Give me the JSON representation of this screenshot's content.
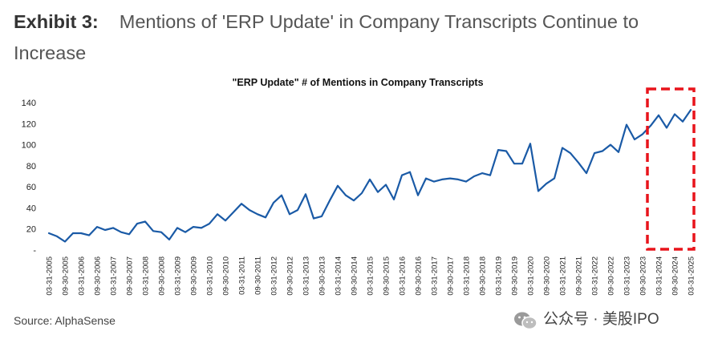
{
  "exhibit": {
    "label": "Exhibit 3:",
    "title": "Mentions of 'ERP Update' in Company Transcripts Continue to Increase"
  },
  "source": "Source: AlphaSense",
  "watermark": {
    "icon": "wechat-icon",
    "text": "公众号 · 美股IPO"
  },
  "colors": {
    "line": "#1a5aa6",
    "highlight": "#e8141b",
    "title_text": "#111111",
    "tick_text": "#222222"
  },
  "chart_data": {
    "type": "line",
    "title": "\"ERP Update\" # of Mentions in Company Transcripts",
    "xlabel": "",
    "ylabel": "",
    "ylim": [
      0,
      140
    ],
    "yticks": [
      "-",
      "20",
      "40",
      "60",
      "80",
      "100",
      "120",
      "140"
    ],
    "grid": false,
    "x_labels": [
      "03-31-2005",
      "09-30-2005",
      "03-31-2006",
      "09-30-2006",
      "03-31-2007",
      "09-30-2007",
      "03-31-2008",
      "09-30-2008",
      "03-31-2009",
      "09-30-2009",
      "03-31-2010",
      "09-30-2010",
      "03-31-2011",
      "09-30-2011",
      "03-31-2012",
      "09-30-2012",
      "03-31-2013",
      "09-30-2013",
      "03-31-2014",
      "09-30-2014",
      "03-31-2015",
      "09-30-2015",
      "03-31-2016",
      "09-30-2016",
      "03-31-2017",
      "09-30-2017",
      "03-31-2018",
      "09-30-2018",
      "03-31-2019",
      "09-30-2019",
      "03-31-2020",
      "09-30-2020",
      "03-31-2021",
      "09-30-2021",
      "03-31-2022",
      "09-30-2022",
      "03-31-2023",
      "09-30-2023",
      "03-31-2024",
      "09-30-2024",
      "03-31-2025"
    ],
    "values": [
      16,
      13,
      8,
      16,
      16,
      14,
      22,
      19,
      21,
      17,
      15,
      25,
      27,
      18,
      17,
      10,
      21,
      17,
      22,
      21,
      25,
      34,
      28,
      36,
      44,
      38,
      34,
      31,
      45,
      52,
      34,
      38,
      53,
      30,
      32,
      47,
      61,
      52,
      47,
      54,
      67,
      55,
      62,
      48,
      71,
      74,
      52,
      68,
      65,
      67,
      68,
      67,
      65,
      70,
      73,
      71,
      95,
      94,
      82,
      82,
      101,
      56,
      63,
      68,
      97,
      92,
      83,
      73,
      92,
      94,
      100,
      93,
      119,
      105,
      110,
      118,
      128,
      116,
      129,
      122,
      133
    ],
    "highlight_range": [
      "03-31-2024",
      "03-31-2025"
    ]
  }
}
